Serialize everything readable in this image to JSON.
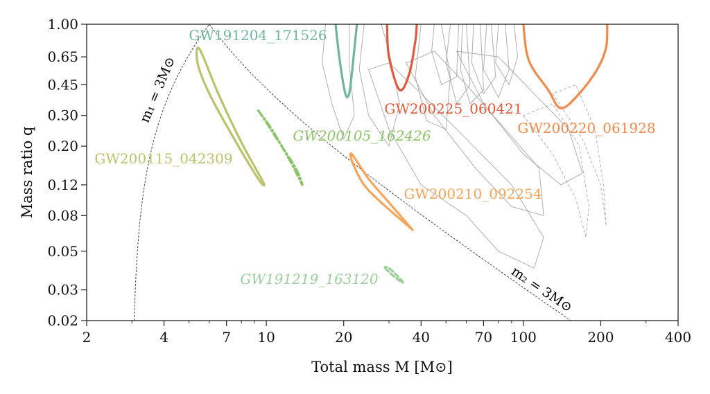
{
  "chart_data": {
    "type": "scatter",
    "xlabel": "Total mass M [M⊙]",
    "ylabel": "Mass ratio q",
    "x_scale": "log",
    "y_scale": "log",
    "xlim": [
      2,
      400
    ],
    "ylim": [
      0.02,
      1.0
    ],
    "x_ticks": [
      2,
      4,
      7,
      10,
      20,
      40,
      70,
      100,
      200,
      400
    ],
    "x_tick_labels": [
      "2",
      "4",
      "7",
      "10",
      "20",
      "40",
      "70",
      "100",
      "200",
      "400"
    ],
    "y_ticks": [
      0.02,
      0.03,
      0.05,
      0.08,
      0.12,
      0.2,
      0.3,
      0.45,
      0.65,
      1.0
    ],
    "y_tick_labels": [
      "0.02",
      "0.03",
      "0.05",
      "0.08",
      "0.12",
      "0.20",
      "0.30",
      "0.45",
      "0.65",
      "1.00"
    ],
    "grid": false,
    "boundary_labels": {
      "m1": "m₁ = 3M⊙",
      "m2": "m₂ = 3M⊙"
    },
    "series": [
      {
        "name": "GW191204_171526",
        "color": "#6fb59a",
        "style": "solid",
        "points": [
          [
            18.6,
            1.0
          ],
          [
            19.3,
            0.62
          ],
          [
            20.3,
            0.4
          ],
          [
            21.0,
            0.4
          ],
          [
            21.6,
            0.55
          ],
          [
            22.5,
            1.0
          ]
        ]
      },
      {
        "name": "GW200225_060421",
        "color": "#e0593a",
        "style": "solid",
        "points": [
          [
            29.5,
            1.0
          ],
          [
            30.0,
            0.65
          ],
          [
            33.0,
            0.42
          ],
          [
            36.0,
            0.52
          ],
          [
            38.0,
            0.8
          ],
          [
            38.5,
            1.0
          ]
        ]
      },
      {
        "name": "GW200220_061928",
        "color": "#f08a4b",
        "style": "solid",
        "points": [
          [
            100,
            1.0
          ],
          [
            105,
            0.62
          ],
          [
            125,
            0.42
          ],
          [
            140,
            0.33
          ],
          [
            165,
            0.4
          ],
          [
            195,
            0.56
          ],
          [
            210,
            0.74
          ],
          [
            212,
            1.0
          ]
        ]
      },
      {
        "name": "GW200105_162426",
        "color": "#8cc46a",
        "style": "dashdot",
        "points": [
          [
            9.3,
            0.32
          ],
          [
            10.5,
            0.25
          ],
          [
            12.5,
            0.16
          ],
          [
            13.8,
            0.12
          ],
          [
            13.0,
            0.15
          ],
          [
            11.0,
            0.22
          ],
          [
            9.6,
            0.3
          ]
        ]
      },
      {
        "name": "GW200115_042309",
        "color": "#b9c36b",
        "style": "solid",
        "points": [
          [
            5.5,
            0.72
          ],
          [
            6.5,
            0.4
          ],
          [
            8.0,
            0.21
          ],
          [
            9.7,
            0.125
          ],
          [
            9.3,
            0.13
          ],
          [
            7.5,
            0.22
          ],
          [
            6.0,
            0.4
          ],
          [
            5.4,
            0.6
          ]
        ]
      },
      {
        "name": "GW200210_092254",
        "color": "#f5a55a",
        "style": "solid",
        "points": [
          [
            21.5,
            0.18
          ],
          [
            25.0,
            0.13
          ],
          [
            30.0,
            0.095
          ],
          [
            36.5,
            0.068
          ],
          [
            35.5,
            0.07
          ],
          [
            28.0,
            0.095
          ],
          [
            24.0,
            0.12
          ],
          [
            21.7,
            0.16
          ]
        ]
      },
      {
        "name": "GW191219_163120",
        "color": "#9ccf9a",
        "style": "dashed",
        "points": [
          [
            29.0,
            0.04
          ],
          [
            32.0,
            0.035
          ],
          [
            34.0,
            0.033
          ],
          [
            33.0,
            0.035
          ],
          [
            30.0,
            0.04
          ]
        ]
      }
    ]
  }
}
